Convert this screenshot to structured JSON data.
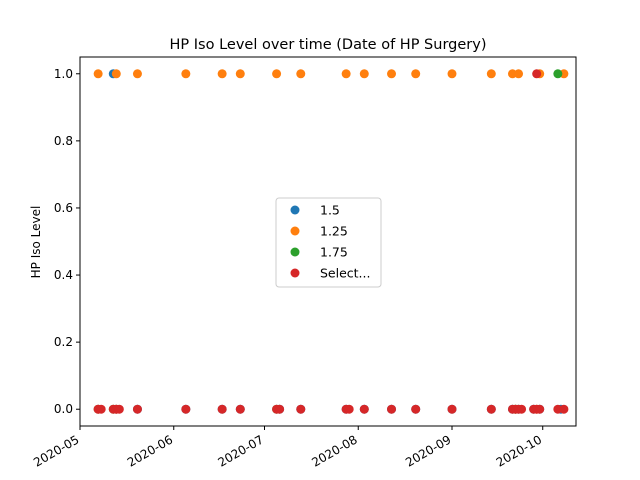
{
  "chart_data": {
    "type": "scatter",
    "title": "HP Iso Level over time (Date of HP Surgery)",
    "xlabel": "",
    "ylabel": "HP Iso Level",
    "xlim": [
      "2020-05-01",
      "2020-10-12"
    ],
    "ylim": [
      -0.05,
      1.05
    ],
    "xticks": [
      "2020-05",
      "2020-06",
      "2020-07",
      "2020-08",
      "2020-09",
      "2020-10"
    ],
    "yticks": [
      "0.0",
      "0.2",
      "0.4",
      "0.6",
      "0.8",
      "1.0"
    ],
    "grid": false,
    "legend_position": "center",
    "series": [
      {
        "name": "1.5",
        "color": "#1f77b4",
        "points": [
          [
            "2020-05-07",
            0
          ],
          [
            "2020-05-12",
            1
          ],
          [
            "2020-05-13",
            0
          ],
          [
            "2020-05-20",
            0
          ],
          [
            "2020-06-05",
            0
          ],
          [
            "2020-06-17",
            0
          ],
          [
            "2020-06-23",
            0
          ],
          [
            "2020-07-06",
            0
          ],
          [
            "2020-07-13",
            0
          ],
          [
            "2020-07-28",
            0
          ],
          [
            "2020-08-03",
            0
          ],
          [
            "2020-08-12",
            0
          ],
          [
            "2020-08-20",
            0
          ],
          [
            "2020-09-01",
            0
          ],
          [
            "2020-09-14",
            0
          ],
          [
            "2020-09-21",
            0
          ],
          [
            "2020-09-23",
            0
          ],
          [
            "2020-09-28",
            0
          ],
          [
            "2020-09-30",
            0
          ],
          [
            "2020-10-07",
            0
          ]
        ]
      },
      {
        "name": "1.25",
        "color": "#ff7f0e",
        "points": [
          [
            "2020-05-07",
            1
          ],
          [
            "2020-05-13",
            1
          ],
          [
            "2020-05-20",
            1
          ],
          [
            "2020-06-05",
            1
          ],
          [
            "2020-06-17",
            1
          ],
          [
            "2020-06-23",
            1
          ],
          [
            "2020-07-05",
            1
          ],
          [
            "2020-07-13",
            1
          ],
          [
            "2020-07-28",
            1
          ],
          [
            "2020-08-03",
            1
          ],
          [
            "2020-08-12",
            1
          ],
          [
            "2020-08-20",
            1
          ],
          [
            "2020-09-01",
            1
          ],
          [
            "2020-09-14",
            1
          ],
          [
            "2020-09-21",
            1
          ],
          [
            "2020-09-23",
            1
          ],
          [
            "2020-09-30",
            1
          ],
          [
            "2020-10-08",
            1
          ],
          [
            "2020-05-07",
            0
          ],
          [
            "2020-05-13",
            0
          ],
          [
            "2020-09-22",
            0
          ],
          [
            "2020-09-29",
            0
          ]
        ]
      },
      {
        "name": "1.75",
        "color": "#2ca02c",
        "points": [
          [
            "2020-10-06",
            1
          ],
          [
            "2020-05-12",
            0
          ],
          [
            "2020-07-05",
            0
          ],
          [
            "2020-09-22",
            0
          ]
        ]
      },
      {
        "name": "Select...",
        "color": "#d62728",
        "points": [
          [
            "2020-09-29",
            1
          ],
          [
            "2020-05-07",
            0
          ],
          [
            "2020-05-08",
            0
          ],
          [
            "2020-05-12",
            0
          ],
          [
            "2020-05-13",
            0
          ],
          [
            "2020-05-14",
            0
          ],
          [
            "2020-05-20",
            0
          ],
          [
            "2020-06-05",
            0
          ],
          [
            "2020-06-17",
            0
          ],
          [
            "2020-06-23",
            0
          ],
          [
            "2020-07-05",
            0
          ],
          [
            "2020-07-06",
            0
          ],
          [
            "2020-07-13",
            0
          ],
          [
            "2020-07-28",
            0
          ],
          [
            "2020-07-29",
            0
          ],
          [
            "2020-08-03",
            0
          ],
          [
            "2020-08-12",
            0
          ],
          [
            "2020-08-20",
            0
          ],
          [
            "2020-09-01",
            0
          ],
          [
            "2020-09-14",
            0
          ],
          [
            "2020-09-21",
            0
          ],
          [
            "2020-09-22",
            0
          ],
          [
            "2020-09-23",
            0
          ],
          [
            "2020-09-24",
            0
          ],
          [
            "2020-09-28",
            0
          ],
          [
            "2020-09-29",
            0
          ],
          [
            "2020-09-30",
            0
          ],
          [
            "2020-10-06",
            0
          ],
          [
            "2020-10-08",
            0
          ]
        ]
      }
    ]
  }
}
